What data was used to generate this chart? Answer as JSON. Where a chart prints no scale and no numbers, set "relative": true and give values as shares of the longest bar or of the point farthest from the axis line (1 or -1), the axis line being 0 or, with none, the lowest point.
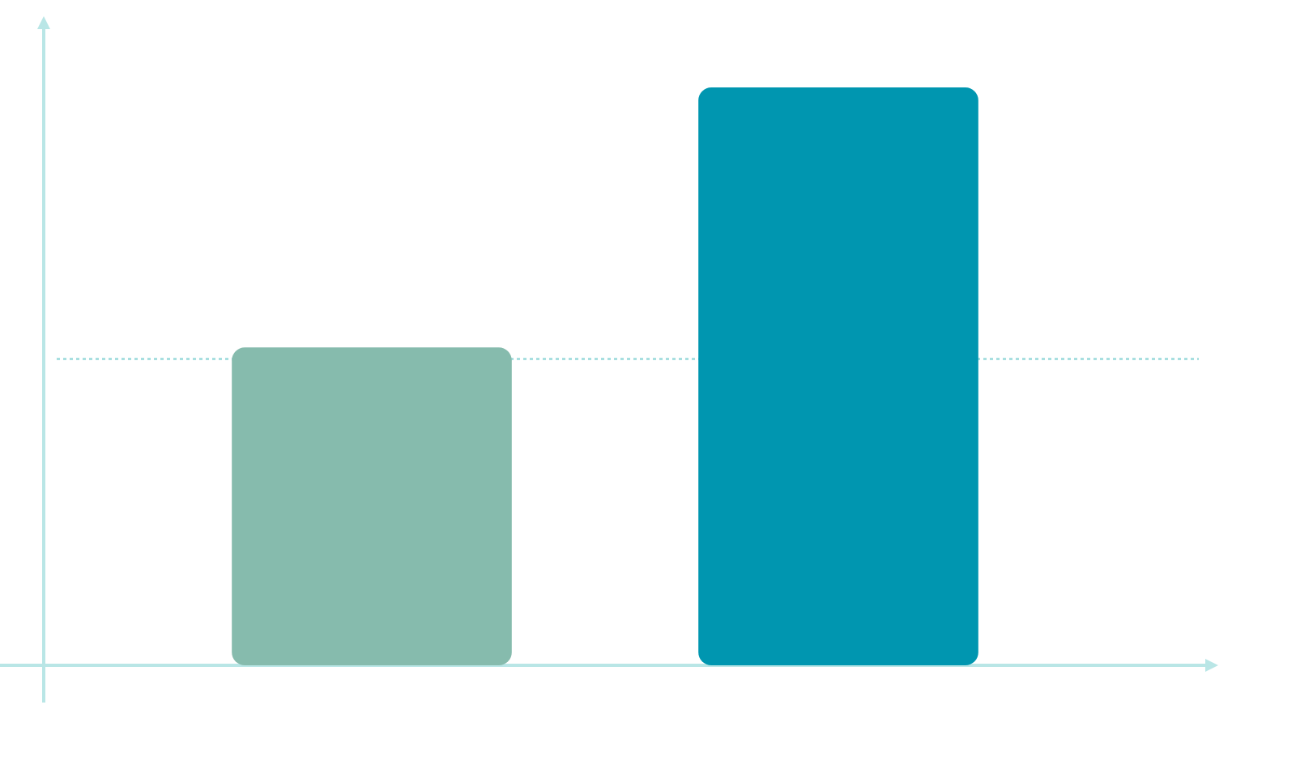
{
  "chart_data": {
    "type": "bar",
    "relative": true,
    "categories": [
      null,
      null
    ],
    "values": [
      0.55,
      1
    ],
    "colors": [
      "#86bbad",
      "#0096b0"
    ],
    "ref_lines": [
      {
        "axis": "y",
        "value": 0.53,
        "color": "#a8dfe0",
        "line_style": "dotted"
      }
    ]
  }
}
